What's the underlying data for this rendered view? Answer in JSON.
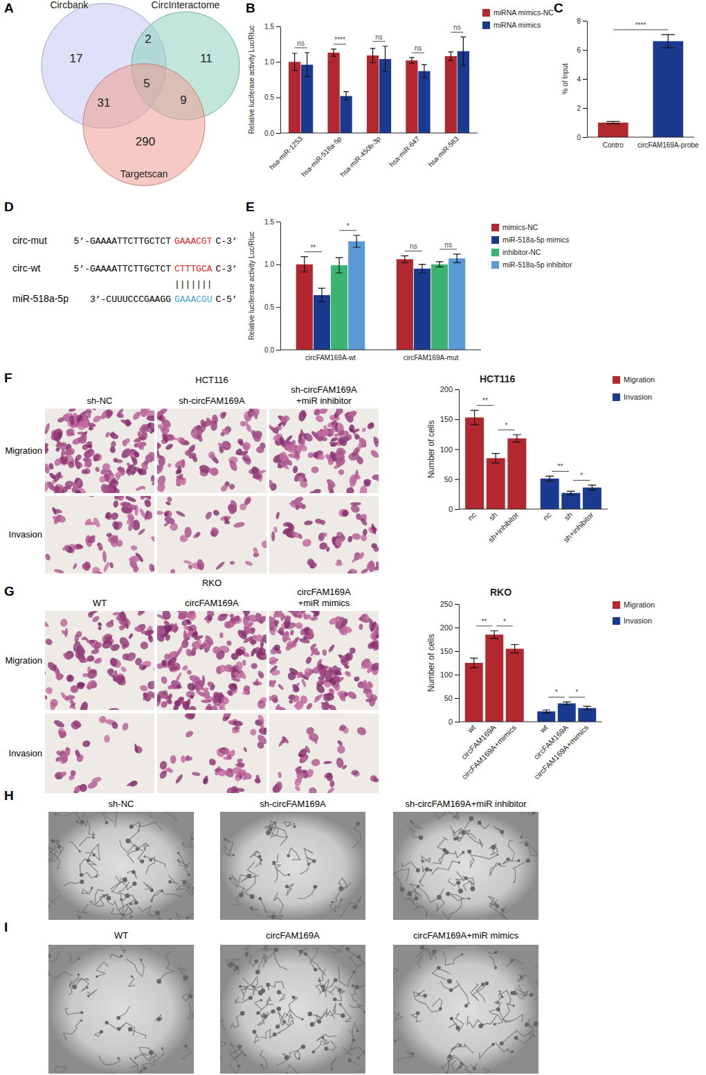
{
  "panel_labels": [
    "A",
    "B",
    "C",
    "D",
    "E",
    "F",
    "G",
    "H",
    "I"
  ],
  "venn": {
    "sets": [
      {
        "name": "Circbank",
        "color": "#c3c8f2"
      },
      {
        "name": "CircInteractome",
        "color": "#8fd1bd"
      },
      {
        "name": "Targetscan",
        "color": "#f19d93"
      }
    ],
    "regions": [
      {
        "sets": [
          "Circbank"
        ],
        "count": 17
      },
      {
        "sets": [
          "Circbank",
          "CircInteractome"
        ],
        "count": 2
      },
      {
        "sets": [
          "CircInteractome"
        ],
        "count": 11
      },
      {
        "sets": [
          "Circbank",
          "CircInteractome",
          "Targetscan"
        ],
        "count": 5
      },
      {
        "sets": [
          "Circbank",
          "Targetscan"
        ],
        "count": 31
      },
      {
        "sets": [
          "CircInteractome",
          "Targetscan"
        ],
        "count": 9
      },
      {
        "sets": [
          "Targetscan"
        ],
        "count": 290
      }
    ]
  },
  "sequence": {
    "rows": [
      {
        "name": "circ-mut",
        "prefix": "5’-GAAAATTCTTGCTCT",
        "site": "GAAACGT",
        "site_color": "#e0231c",
        "suffix": "C-3’"
      },
      {
        "name": "circ-wt",
        "prefix": "5’-GAAAATTCTTGCTCT",
        "site": "CTTTGCA",
        "site_color": "#e0231c",
        "suffix": "C-3’"
      },
      {
        "name": "miR-518a-5p",
        "prefix": "3’-CUUUCCCGAAGG",
        "site": "GAAACGU",
        "site_color": "#4aa3d8",
        "suffix": "C-5’"
      }
    ],
    "pairing": "|||||||"
  },
  "chart_data": [
    {
      "type": "bar",
      "ylabel": "Relative luciferase activity Luc/Rluc",
      "categories": [
        "hsa-miR-1253",
        "hsa-miR-518a-5p",
        "hsa-miR-450b-3p",
        "hsa-miR-647",
        "hsa-miR-583"
      ],
      "series": [
        {
          "name": "miRNA mimics-NC",
          "color": "#b2282e",
          "values": [
            1.0,
            1.13,
            1.09,
            1.02,
            1.08
          ],
          "errors": [
            0.12,
            0.05,
            0.1,
            0.04,
            0.06
          ]
        },
        {
          "name": "miRNA mimics",
          "color": "#1a3a8f",
          "values": [
            0.96,
            0.52,
            1.04,
            0.87,
            1.15
          ],
          "errors": [
            0.17,
            0.06,
            0.18,
            0.09,
            0.2
          ]
        }
      ],
      "ylim": [
        0,
        1.5
      ],
      "yticks": [
        {
          "value": 0,
          "label": "0.0"
        },
        {
          "value": 0.5,
          "label": "0.5"
        },
        {
          "value": 1,
          "label": "1.0"
        },
        {
          "value": 1.5,
          "label": "1.5"
        }
      ],
      "significance": [
        "ns",
        "****",
        "ns",
        "ns",
        "ns"
      ]
    },
    {
      "type": "bar",
      "ylabel": "% of Input",
      "categories": [
        "Contro",
        "circFAM169A-probe"
      ],
      "values": [
        1.0,
        6.6
      ],
      "errors": [
        0.08,
        0.45
      ],
      "colors": [
        "#b2282e",
        "#1a3a8f"
      ],
      "ylim": [
        0,
        8
      ],
      "yticks": [
        0,
        2,
        4,
        6,
        8
      ],
      "significance": "****"
    },
    {
      "type": "bar",
      "ylabel": "Relative luciferase activity Luc/Rluc",
      "categories": [
        "circFAM169A-wt",
        "circFAM169A-mut"
      ],
      "series": [
        {
          "name": "mimics-NC",
          "color": "#b2282e",
          "values": [
            1.0,
            1.06
          ],
          "errors": [
            0.09,
            0.04
          ]
        },
        {
          "name": "miR-518a-5p mimics",
          "color": "#1a3a8f",
          "values": [
            0.64,
            0.95
          ],
          "errors": [
            0.08,
            0.05
          ]
        },
        {
          "name": "inhibitor-NC",
          "color": "#3cb371",
          "values": [
            0.99,
            1.0
          ],
          "errors": [
            0.09,
            0.03
          ]
        },
        {
          "name": "miR-518a-5p inhibitor",
          "color": "#5b9bd5",
          "values": [
            1.27,
            1.07
          ],
          "errors": [
            0.07,
            0.05
          ]
        }
      ],
      "ylim": [
        0,
        1.5
      ],
      "yticks": [
        {
          "value": 0,
          "label": "0.0"
        },
        {
          "value": 0.5,
          "label": "0.5"
        },
        {
          "value": 1,
          "label": "1.0"
        },
        {
          "value": 1.5,
          "label": "1.5"
        }
      ],
      "significance": [
        [
          "**",
          "*"
        ],
        [
          "ns",
          "ns"
        ]
      ]
    },
    {
      "type": "bar",
      "title": "HCT116",
      "ylabel": "Number of cells",
      "categories": [
        "nc",
        "sh",
        "sh+inhibitor"
      ],
      "series": [
        {
          "name": "Migration",
          "color": "#b2282e",
          "values": [
            153,
            85,
            118
          ],
          "errors": [
            12,
            8,
            6
          ],
          "significance": [
            "**",
            "*"
          ]
        },
        {
          "name": "Invasion",
          "color": "#1a3a8f",
          "values": [
            51,
            27,
            36
          ],
          "errors": [
            4,
            3,
            4
          ],
          "significance": [
            "**",
            "*"
          ]
        }
      ],
      "ylim": [
        0,
        200
      ],
      "yticks": [
        0,
        50,
        100,
        150,
        200
      ]
    },
    {
      "type": "bar",
      "title": "RKO",
      "ylabel": "Number of cells",
      "categories": [
        "wt",
        "circFAM169A",
        "circFAM169A+mimics"
      ],
      "series": [
        {
          "name": "Migration",
          "color": "#b2282e",
          "values": [
            125,
            185,
            155
          ],
          "errors": [
            10,
            8,
            9
          ],
          "significance": [
            "**",
            "*"
          ]
        },
        {
          "name": "Invasion",
          "color": "#1a3a8f",
          "values": [
            22,
            39,
            29
          ],
          "errors": [
            3,
            3,
            4
          ],
          "significance": [
            "*",
            "*"
          ]
        }
      ],
      "ylim": [
        0,
        250
      ],
      "yticks": [
        0,
        50,
        100,
        150,
        200,
        250
      ]
    }
  ],
  "image_panels": [
    {
      "title": "HCT116",
      "columns": [
        [
          "sh-NC"
        ],
        [
          "sh-circFAM169A"
        ],
        [
          "sh-circFAM169A",
          "+miR inhibitor"
        ]
      ],
      "rows": [
        "Migration",
        "Invasion"
      ]
    },
    {
      "title": "RKO",
      "columns": [
        [
          "WT"
        ],
        [
          "circFAM169A"
        ],
        [
          "circFAM169A",
          "+miR mimics"
        ]
      ],
      "rows": [
        "Migration",
        "Invasion"
      ]
    },
    {
      "columns": [
        [
          "sh-NC"
        ],
        [
          "sh-circFAM169A"
        ],
        [
          "sh-circFAM169A+miR inhibitor"
        ]
      ]
    },
    {
      "columns": [
        [
          "WT"
        ],
        [
          "circFAM169A"
        ],
        [
          "circFAM169A+miR mimics"
        ]
      ]
    }
  ]
}
